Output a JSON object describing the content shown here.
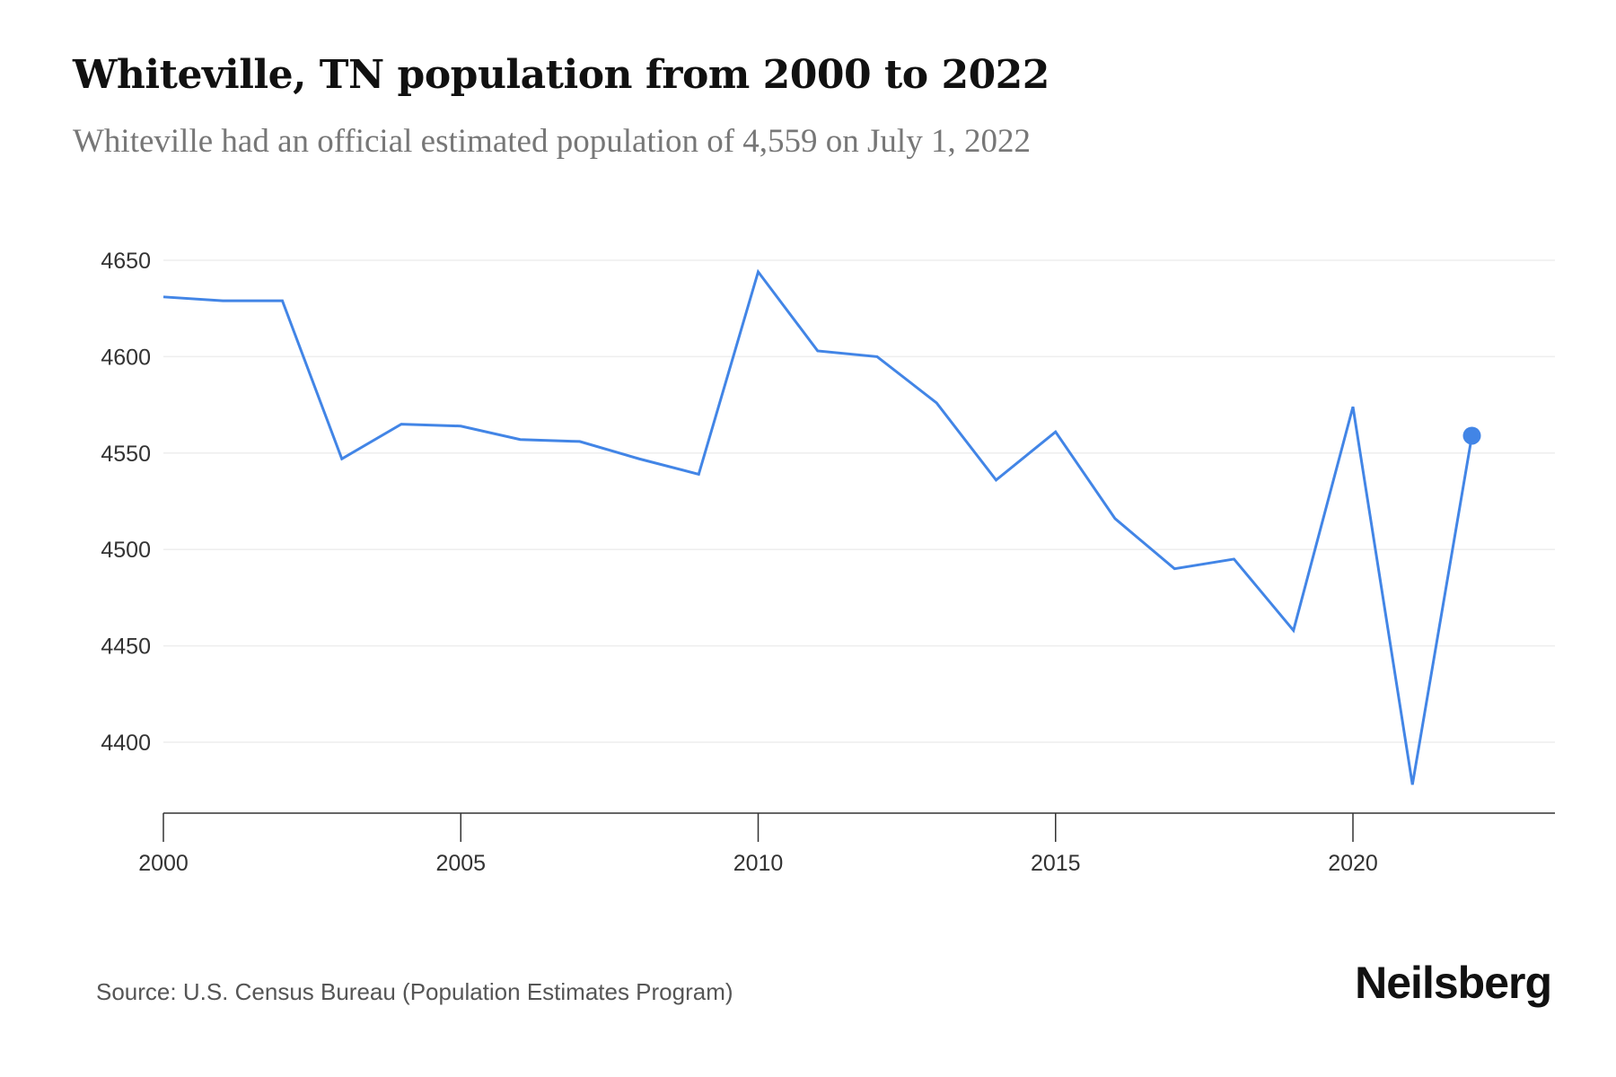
{
  "chart_data": {
    "type": "line",
    "title": "Whiteville, TN population from 2000 to 2022",
    "subtitle": "Whiteville had an official estimated population of 4,559 on July 1, 2022",
    "xlabel": "",
    "ylabel": "",
    "x": [
      2000,
      2001,
      2002,
      2003,
      2004,
      2005,
      2006,
      2007,
      2008,
      2009,
      2010,
      2011,
      2012,
      2013,
      2014,
      2015,
      2016,
      2017,
      2018,
      2019,
      2020,
      2021,
      2022
    ],
    "series": [
      {
        "name": "Population",
        "values": [
          4631,
          4629,
          4629,
          4547,
          4565,
          4564,
          4557,
          4556,
          4547,
          4539,
          4644,
          4603,
          4600,
          4576,
          4536,
          4561,
          4516,
          4490,
          4495,
          4458,
          4574,
          4378,
          4559
        ]
      }
    ],
    "xticks": [
      "2000",
      "2005",
      "2010",
      "2015",
      "2020"
    ],
    "yticks": [
      "4400",
      "4450",
      "4500",
      "4550",
      "4600",
      "4650"
    ],
    "ylim": [
      4400,
      4650
    ],
    "grid": true,
    "line_color": "#4285e6",
    "highlight_last_point": true
  },
  "footer": {
    "source": "Source: U.S. Census Bureau (Population Estimates Program)",
    "brand": "Neilsberg"
  }
}
